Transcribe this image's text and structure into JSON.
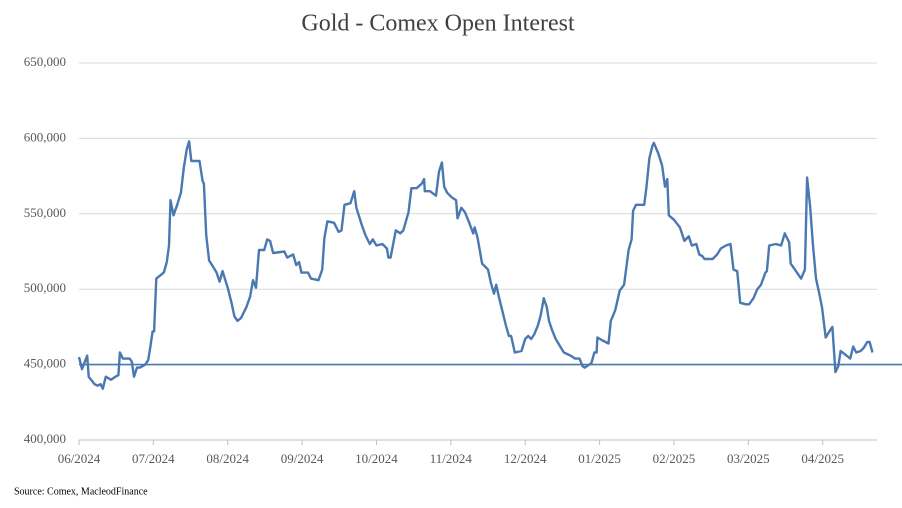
{
  "chart_data": {
    "type": "line",
    "title": "Gold - Comex Open Interest",
    "source": "Source: Comex,  MacleodFinance",
    "x": [
      0,
      0.04,
      0.11,
      0.13,
      0.21,
      0.25,
      0.29,
      0.32,
      0.36,
      0.43,
      0.49,
      0.53,
      0.55,
      0.59,
      0.68,
      0.71,
      0.74,
      0.78,
      0.82,
      0.89,
      0.93,
      0.96,
      0.99,
      1.01,
      1.04,
      1.14,
      1.18,
      1.21,
      1.23,
      1.27,
      1.32,
      1.37,
      1.41,
      1.45,
      1.48,
      1.51,
      1.62,
      1.66,
      1.68,
      1.71,
      1.75,
      1.79,
      1.85,
      1.89,
      1.93,
      2,
      2.05,
      2.09,
      2.13,
      2.18,
      2.25,
      2.3,
      2.34,
      2.38,
      2.42,
      2.49,
      2.53,
      2.57,
      2.61,
      2.76,
      2.8,
      2.88,
      2.92,
      2.96,
      2.99,
      3.08,
      3.12,
      3.22,
      3.27,
      3.3,
      3.34,
      3.43,
      3.49,
      3.53,
      3.57,
      3.65,
      3.7,
      3.73,
      3.8,
      3.85,
      3.91,
      3.95,
      4,
      4.08,
      4.14,
      4.16,
      4.19,
      4.26,
      4.32,
      4.36,
      4.43,
      4.47,
      4.54,
      4.61,
      4.64,
      4.65,
      4.72,
      4.8,
      4.84,
      4.88,
      4.91,
      4.95,
      5.01,
      5.07,
      5.09,
      5.14,
      5.19,
      5.24,
      5.3,
      5.32,
      5.36,
      5.42,
      5.46,
      5.5,
      5.54,
      5.58,
      5.61,
      5.65,
      5.69,
      5.74,
      5.78,
      5.81,
      5.86,
      5.95,
      6,
      6.04,
      6.08,
      6.12,
      6.17,
      6.21,
      6.25,
      6.29,
      6.32,
      6.36,
      6.41,
      6.47,
      6.52,
      6.61,
      6.67,
      6.73,
      6.77,
      6.8,
      6.89,
      6.93,
      6.96,
      6.97,
      7.04,
      7.12,
      7.15,
      7.21,
      7.27,
      7.33,
      7.39,
      7.43,
      7.45,
      7.49,
      7.6,
      7.63,
      7.67,
      7.71,
      7.73,
      7.79,
      7.84,
      7.88,
      7.91,
      7.93,
      8,
      8.08,
      8.14,
      8.2,
      8.24,
      8.3,
      8.34,
      8.38,
      8.41,
      8.52,
      8.58,
      8.63,
      8.7,
      8.76,
      8.8,
      8.85,
      8.89,
      8.97,
      9.01,
      9.07,
      9.12,
      9.17,
      9.23,
      9.25,
      9.28,
      9.37,
      9.44,
      9.49,
      9.55,
      9.57,
      9.64,
      9.71,
      9.76,
      9.79,
      9.83,
      9.87,
      9.91,
      9.95,
      9.99,
      10.04,
      10.09,
      10.13,
      10.17,
      10.21,
      10.24,
      10.32,
      10.37,
      10.41,
      10.45,
      10.51,
      10.55,
      10.6,
      10.63,
      10.67
    ],
    "series": [
      {
        "name": "Open Interest",
        "color": "#4a78b0",
        "values": [
          455000,
          447000,
          456000,
          442000,
          437000,
          436000,
          437000,
          434000,
          442000,
          440000,
          442000,
          443000,
          458000,
          454000,
          454000,
          452000,
          442000,
          448000,
          448000,
          450000,
          453000,
          462000,
          472000,
          472000,
          507000,
          511000,
          518000,
          529000,
          559000,
          549000,
          556000,
          564000,
          581000,
          593000,
          598000,
          585000,
          585000,
          572000,
          570000,
          536000,
          519000,
          516000,
          511000,
          505000,
          512000,
          501000,
          491000,
          482000,
          479000,
          481000,
          488000,
          495000,
          506000,
          501000,
          526000,
          526000,
          533000,
          532000,
          524000,
          525000,
          521000,
          523000,
          516000,
          518000,
          511000,
          511000,
          507000,
          506000,
          513000,
          534000,
          545000,
          544000,
          538000,
          539000,
          556000,
          557000,
          565000,
          554000,
          543000,
          536000,
          530000,
          533000,
          529000,
          530000,
          527000,
          521000,
          521000,
          539000,
          537000,
          539000,
          551000,
          567000,
          567000,
          570000,
          573000,
          565000,
          565000,
          562000,
          578000,
          584000,
          568000,
          564000,
          561000,
          559000,
          547000,
          554000,
          551000,
          545000,
          537000,
          541000,
          534000,
          517000,
          515000,
          513000,
          504000,
          497000,
          503000,
          494000,
          486000,
          476000,
          469000,
          469000,
          458000,
          459000,
          467000,
          469000,
          467000,
          470000,
          476000,
          483000,
          494000,
          488000,
          479000,
          473000,
          467000,
          462000,
          458000,
          456000,
          454000,
          454000,
          449000,
          448000,
          451000,
          458000,
          458000,
          468000,
          466000,
          464000,
          479000,
          486000,
          499000,
          503000,
          526000,
          533000,
          552000,
          556000,
          556000,
          568000,
          587000,
          595000,
          597000,
          590000,
          582000,
          568000,
          573000,
          549000,
          546000,
          541000,
          532000,
          535000,
          529000,
          530000,
          523000,
          522000,
          520000,
          520000,
          523000,
          527000,
          529000,
          530000,
          513000,
          512000,
          491000,
          490000,
          490000,
          494000,
          500000,
          503000,
          511000,
          512000,
          529000,
          530000,
          529000,
          537000,
          531000,
          517000,
          512000,
          507000,
          513000,
          574000,
          555000,
          529000,
          507000,
          498000,
          488000,
          468000,
          472000,
          475000,
          445000,
          449000,
          459000,
          456000,
          454000,
          462000,
          458000,
          459000,
          461000,
          465000,
          465000,
          458000
        ]
      }
    ],
    "reference_line": {
      "value": 450000,
      "color": "#4a78b0"
    },
    "xlim": [
      0,
      10.73
    ],
    "xticks": [
      {
        "value": 0,
        "label": "06/2024"
      },
      {
        "value": 1,
        "label": "07/2024"
      },
      {
        "value": 2,
        "label": "08/2024"
      },
      {
        "value": 3,
        "label": "09/2024"
      },
      {
        "value": 4,
        "label": "10/2024"
      },
      {
        "value": 5,
        "label": "11/2024"
      },
      {
        "value": 6,
        "label": "12/2024"
      },
      {
        "value": 7,
        "label": "01/2025"
      },
      {
        "value": 8,
        "label": "02/2025"
      },
      {
        "value": 9,
        "label": "03/2025"
      },
      {
        "value": 10,
        "label": "04/2025"
      }
    ],
    "ylim": [
      400000,
      650000
    ],
    "yticks": [
      {
        "value": 400000,
        "label": "400,000"
      },
      {
        "value": 450000,
        "label": "450,000"
      },
      {
        "value": 500000,
        "label": "500,000"
      },
      {
        "value": 550000,
        "label": "550,000"
      },
      {
        "value": 600000,
        "label": "600,000"
      },
      {
        "value": 650000,
        "label": "650,000"
      }
    ],
    "grid": true
  }
}
